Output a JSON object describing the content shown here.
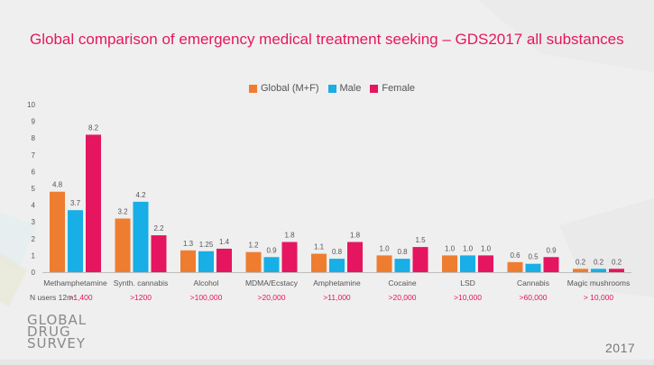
{
  "title": "Global comparison of emergency medical treatment seeking – GDS2017 all substances",
  "logo_lines": [
    "GLOBAL",
    "DRUG",
    "SURVEY"
  ],
  "year": "2017",
  "n_users_label": "N users 12m:",
  "colors": {
    "global": "#ef7d30",
    "male": "#18aee6",
    "female": "#e5155f",
    "title": "#e5175f",
    "n_users": "#e5155f"
  },
  "chart_data": {
    "type": "bar",
    "categories": [
      "Methamphetamine",
      "Synth. cannabis",
      "Alcohol",
      "MDMA/Ecstacy",
      "Amphetamine",
      "Cocaine",
      "LSD",
      "Cannabis",
      "Magic mushrooms"
    ],
    "series": [
      {
        "name": "Global (M+F)",
        "values": [
          4.8,
          3.2,
          1.3,
          1.2,
          1.1,
          1.0,
          1.0,
          0.6,
          0.2
        ],
        "labels": [
          "4.8",
          "3.2",
          "1.3",
          "1.2",
          "1.1",
          "1.0",
          "1.0",
          "0.6",
          "0.2"
        ]
      },
      {
        "name": "Male",
        "values": [
          3.7,
          4.2,
          1.25,
          0.9,
          0.8,
          0.8,
          1.0,
          0.5,
          0.2
        ],
        "labels": [
          "3.7",
          "4.2",
          "1.25",
          "0.9",
          "0.8",
          "0.8",
          "1.0",
          "0.5",
          "0.2"
        ]
      },
      {
        "name": "Female",
        "values": [
          8.2,
          2.2,
          1.4,
          1.8,
          1.8,
          1.5,
          1.0,
          0.9,
          0.2
        ],
        "labels": [
          "8.2",
          "2.2",
          "1.4",
          "1.8",
          "1.8",
          "1.5",
          "1.0",
          "0.9",
          "0.2"
        ]
      }
    ],
    "n_users": [
      ">1,400",
      ">1200",
      ">100,000",
      ">20,000",
      ">11,000",
      ">20,000",
      ">10,000",
      ">60,000",
      "> 10,000"
    ],
    "ylim": [
      0,
      10
    ],
    "yticks": [
      0,
      1,
      2,
      3,
      4,
      5,
      6,
      7,
      8,
      9,
      10
    ],
    "legend_position": "top-center",
    "grid": false
  }
}
